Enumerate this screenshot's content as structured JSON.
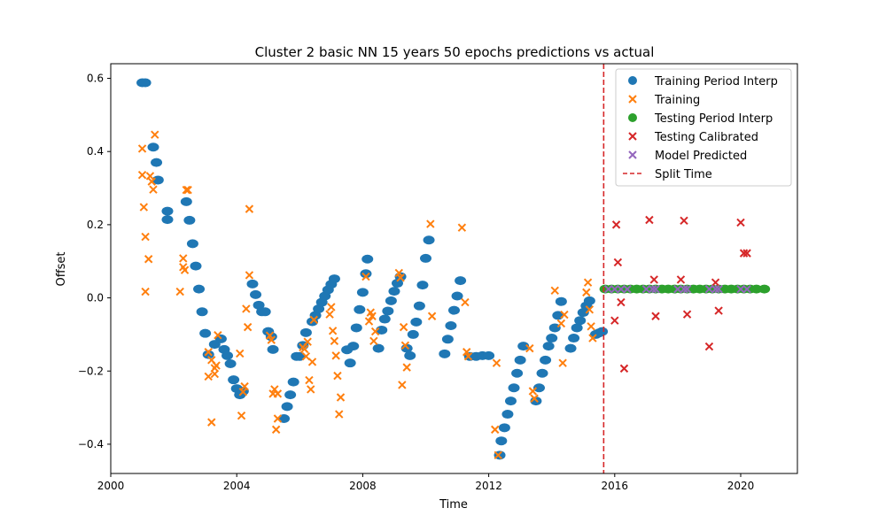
{
  "chart_data": {
    "type": "scatter",
    "title": "Cluster 2 basic NN 15 years 50 epochs predictions vs actual",
    "xlabel": "Time",
    "ylabel": "Offset",
    "xlim": [
      2000.0,
      2021.8
    ],
    "ylim": [
      -0.48,
      0.64
    ],
    "x_ticks": [
      2000,
      2004,
      2008,
      2012,
      2016,
      2020
    ],
    "y_ticks": [
      -0.4,
      -0.2,
      0.0,
      0.2,
      0.4,
      0.6
    ],
    "x_tick_labels": [
      "2000",
      "2004",
      "2008",
      "2012",
      "2016",
      "2020"
    ],
    "y_tick_labels": [
      "−0.4",
      "−0.2",
      "0.0",
      "0.2",
      "0.4",
      "0.6"
    ],
    "grid": false,
    "legend_position": "top-right",
    "split_time": 2015.65,
    "series": [
      {
        "name": "Training Period Interp",
        "marker": "circle",
        "color": "#1f77b4",
        "points": [
          [
            2001.0,
            0.588
          ],
          [
            2001.1,
            0.588
          ],
          [
            2001.35,
            0.412
          ],
          [
            2001.45,
            0.37
          ],
          [
            2001.5,
            0.322
          ],
          [
            2001.8,
            0.237
          ],
          [
            2001.8,
            0.214
          ],
          [
            2002.4,
            0.263
          ],
          [
            2002.5,
            0.212
          ],
          [
            2002.6,
            0.148
          ],
          [
            2002.7,
            0.087
          ],
          [
            2002.8,
            0.024
          ],
          [
            2002.9,
            -0.038
          ],
          [
            2003.0,
            -0.097
          ],
          [
            2003.1,
            -0.155
          ],
          [
            2003.3,
            -0.127
          ],
          [
            2003.5,
            -0.112
          ],
          [
            2003.6,
            -0.141
          ],
          [
            2003.7,
            -0.158
          ],
          [
            2003.8,
            -0.18
          ],
          [
            2003.9,
            -0.224
          ],
          [
            2004.0,
            -0.248
          ],
          [
            2004.1,
            -0.265
          ],
          [
            2004.2,
            -0.255
          ],
          [
            2004.5,
            0.038
          ],
          [
            2004.6,
            0.009
          ],
          [
            2004.7,
            -0.02
          ],
          [
            2004.8,
            -0.038
          ],
          [
            2004.9,
            -0.038
          ],
          [
            2005.0,
            -0.092
          ],
          [
            2005.1,
            -0.106
          ],
          [
            2005.15,
            -0.141
          ],
          [
            2005.5,
            -0.33
          ],
          [
            2005.6,
            -0.297
          ],
          [
            2005.7,
            -0.265
          ],
          [
            2005.8,
            -0.23
          ],
          [
            2005.9,
            -0.16
          ],
          [
            2006.0,
            -0.16
          ],
          [
            2006.1,
            -0.13
          ],
          [
            2006.2,
            -0.095
          ],
          [
            2006.4,
            -0.065
          ],
          [
            2006.5,
            -0.048
          ],
          [
            2006.6,
            -0.03
          ],
          [
            2006.7,
            -0.012
          ],
          [
            2006.8,
            0.005
          ],
          [
            2006.9,
            0.022
          ],
          [
            2007.0,
            0.037
          ],
          [
            2007.1,
            0.052
          ],
          [
            2007.5,
            -0.142
          ],
          [
            2007.6,
            -0.178
          ],
          [
            2007.7,
            -0.132
          ],
          [
            2007.8,
            -0.082
          ],
          [
            2007.9,
            -0.032
          ],
          [
            2008.0,
            0.015
          ],
          [
            2008.1,
            0.066
          ],
          [
            2008.15,
            0.106
          ],
          [
            2008.5,
            -0.138
          ],
          [
            2008.6,
            -0.088
          ],
          [
            2008.7,
            -0.058
          ],
          [
            2008.8,
            -0.036
          ],
          [
            2008.9,
            -0.008
          ],
          [
            2009.0,
            0.018
          ],
          [
            2009.1,
            0.04
          ],
          [
            2009.2,
            0.058
          ],
          [
            2009.4,
            -0.138
          ],
          [
            2009.5,
            -0.158
          ],
          [
            2009.6,
            -0.1
          ],
          [
            2009.7,
            -0.066
          ],
          [
            2009.8,
            -0.022
          ],
          [
            2009.9,
            0.035
          ],
          [
            2010.0,
            0.108
          ],
          [
            2010.1,
            0.158
          ],
          [
            2010.6,
            -0.153
          ],
          [
            2010.7,
            -0.113
          ],
          [
            2010.8,
            -0.076
          ],
          [
            2010.9,
            -0.034
          ],
          [
            2011.0,
            0.005
          ],
          [
            2011.1,
            0.047
          ],
          [
            2011.4,
            -0.16
          ],
          [
            2011.6,
            -0.16
          ],
          [
            2011.8,
            -0.158
          ],
          [
            2012.0,
            -0.158
          ],
          [
            2012.35,
            -0.43
          ],
          [
            2012.4,
            -0.391
          ],
          [
            2012.5,
            -0.355
          ],
          [
            2012.6,
            -0.318
          ],
          [
            2012.7,
            -0.282
          ],
          [
            2012.8,
            -0.246
          ],
          [
            2012.9,
            -0.206
          ],
          [
            2013.0,
            -0.17
          ],
          [
            2013.1,
            -0.132
          ],
          [
            2013.5,
            -0.282
          ],
          [
            2013.6,
            -0.246
          ],
          [
            2013.7,
            -0.206
          ],
          [
            2013.8,
            -0.17
          ],
          [
            2013.9,
            -0.132
          ],
          [
            2014.0,
            -0.11
          ],
          [
            2014.1,
            -0.082
          ],
          [
            2014.2,
            -0.048
          ],
          [
            2014.3,
            -0.01
          ],
          [
            2014.6,
            -0.138
          ],
          [
            2014.7,
            -0.11
          ],
          [
            2014.8,
            -0.082
          ],
          [
            2014.9,
            -0.062
          ],
          [
            2015.0,
            -0.04
          ],
          [
            2015.1,
            -0.022
          ],
          [
            2015.2,
            -0.008
          ],
          [
            2015.4,
            -0.1
          ],
          [
            2015.5,
            -0.096
          ],
          [
            2015.6,
            -0.092
          ]
        ]
      },
      {
        "name": "Training",
        "marker": "x",
        "color": "#ff7f0e",
        "points": [
          [
            2001.0,
            0.408
          ],
          [
            2001.0,
            0.336
          ],
          [
            2001.05,
            0.248
          ],
          [
            2001.1,
            0.167
          ],
          [
            2001.1,
            0.017
          ],
          [
            2001.2,
            0.106
          ],
          [
            2001.25,
            0.333
          ],
          [
            2001.3,
            0.318
          ],
          [
            2001.35,
            0.296
          ],
          [
            2001.4,
            0.446
          ],
          [
            2002.2,
            0.017
          ],
          [
            2002.3,
            0.108
          ],
          [
            2002.3,
            0.084
          ],
          [
            2002.35,
            0.076
          ],
          [
            2002.4,
            0.295
          ],
          [
            2002.45,
            0.295
          ],
          [
            2003.1,
            -0.148
          ],
          [
            2003.1,
            -0.215
          ],
          [
            2003.2,
            -0.17
          ],
          [
            2003.2,
            -0.34
          ],
          [
            2003.3,
            -0.192
          ],
          [
            2003.3,
            -0.208
          ],
          [
            2003.35,
            -0.185
          ],
          [
            2003.4,
            -0.102
          ],
          [
            2004.1,
            -0.152
          ],
          [
            2004.15,
            -0.322
          ],
          [
            2004.2,
            -0.257
          ],
          [
            2004.25,
            -0.242
          ],
          [
            2004.3,
            -0.03
          ],
          [
            2004.35,
            -0.08
          ],
          [
            2004.4,
            0.062
          ],
          [
            2004.4,
            0.243
          ],
          [
            2005.05,
            -0.103
          ],
          [
            2005.1,
            -0.115
          ],
          [
            2005.15,
            -0.262
          ],
          [
            2005.2,
            -0.25
          ],
          [
            2005.25,
            -0.36
          ],
          [
            2005.3,
            -0.33
          ],
          [
            2005.3,
            -0.262
          ],
          [
            2006.1,
            -0.135
          ],
          [
            2006.15,
            -0.14
          ],
          [
            2006.2,
            -0.16
          ],
          [
            2006.25,
            -0.12
          ],
          [
            2006.3,
            -0.225
          ],
          [
            2006.35,
            -0.25
          ],
          [
            2006.4,
            -0.175
          ],
          [
            2006.45,
            -0.06
          ],
          [
            2006.95,
            -0.045
          ],
          [
            2007.0,
            -0.025
          ],
          [
            2007.05,
            -0.09
          ],
          [
            2007.1,
            -0.118
          ],
          [
            2007.15,
            -0.158
          ],
          [
            2007.2,
            -0.213
          ],
          [
            2007.25,
            -0.318
          ],
          [
            2007.3,
            -0.272
          ],
          [
            2008.1,
            0.058
          ],
          [
            2008.2,
            -0.064
          ],
          [
            2008.25,
            -0.04
          ],
          [
            2008.3,
            -0.05
          ],
          [
            2008.35,
            -0.118
          ],
          [
            2008.4,
            -0.092
          ],
          [
            2009.15,
            0.068
          ],
          [
            2009.2,
            0.055
          ],
          [
            2009.25,
            -0.238
          ],
          [
            2009.3,
            -0.08
          ],
          [
            2009.35,
            -0.13
          ],
          [
            2009.4,
            -0.19
          ],
          [
            2010.15,
            0.202
          ],
          [
            2010.2,
            -0.05
          ],
          [
            2011.15,
            0.192
          ],
          [
            2011.25,
            -0.012
          ],
          [
            2011.3,
            -0.148
          ],
          [
            2011.35,
            -0.16
          ],
          [
            2012.2,
            -0.36
          ],
          [
            2012.25,
            -0.178
          ],
          [
            2012.3,
            -0.43
          ],
          [
            2013.3,
            -0.138
          ],
          [
            2013.4,
            -0.255
          ],
          [
            2013.45,
            -0.275
          ],
          [
            2014.1,
            0.02
          ],
          [
            2014.3,
            -0.07
          ],
          [
            2014.35,
            -0.178
          ],
          [
            2014.4,
            -0.046
          ],
          [
            2015.1,
            0.015
          ],
          [
            2015.15,
            0.042
          ],
          [
            2015.2,
            -0.032
          ],
          [
            2015.25,
            -0.078
          ],
          [
            2015.3,
            -0.11
          ]
        ]
      },
      {
        "name": "Testing Period Interp",
        "marker": "circle",
        "color": "#2ca02c",
        "points": [
          [
            2015.7,
            0.024
          ],
          [
            2015.9,
            0.024
          ],
          [
            2016.1,
            0.024
          ],
          [
            2016.3,
            0.024
          ],
          [
            2016.5,
            0.024
          ],
          [
            2016.7,
            0.024
          ],
          [
            2016.9,
            0.024
          ],
          [
            2017.1,
            0.024
          ],
          [
            2017.3,
            0.024
          ],
          [
            2017.5,
            0.024
          ],
          [
            2017.7,
            0.024
          ],
          [
            2017.9,
            0.024
          ],
          [
            2018.1,
            0.024
          ],
          [
            2018.3,
            0.024
          ],
          [
            2018.5,
            0.024
          ],
          [
            2018.7,
            0.024
          ],
          [
            2018.9,
            0.024
          ],
          [
            2019.1,
            0.024
          ],
          [
            2019.3,
            0.024
          ],
          [
            2019.5,
            0.024
          ],
          [
            2019.7,
            0.024
          ],
          [
            2019.9,
            0.024
          ],
          [
            2020.1,
            0.024
          ],
          [
            2020.3,
            0.024
          ],
          [
            2020.5,
            0.024
          ],
          [
            2020.75,
            0.024
          ]
        ]
      },
      {
        "name": "Testing Calibrated",
        "marker": "x",
        "color": "#d62728",
        "points": [
          [
            2016.0,
            -0.062
          ],
          [
            2016.05,
            0.2
          ],
          [
            2016.1,
            0.097
          ],
          [
            2016.2,
            -0.012
          ],
          [
            2016.3,
            -0.193
          ],
          [
            2017.1,
            0.213
          ],
          [
            2017.25,
            0.05
          ],
          [
            2017.3,
            -0.05
          ],
          [
            2018.1,
            0.05
          ],
          [
            2018.2,
            0.211
          ],
          [
            2018.3,
            -0.045
          ],
          [
            2019.0,
            -0.133
          ],
          [
            2019.2,
            0.042
          ],
          [
            2019.3,
            -0.035
          ],
          [
            2020.0,
            0.206
          ],
          [
            2020.1,
            0.122
          ],
          [
            2020.2,
            0.122
          ]
        ]
      },
      {
        "name": "Model Predicted",
        "marker": "x",
        "color": "#9467bd",
        "points": [
          [
            2015.8,
            0.024
          ],
          [
            2016.0,
            0.024
          ],
          [
            2016.2,
            0.024
          ],
          [
            2016.4,
            0.024
          ],
          [
            2017.0,
            0.024
          ],
          [
            2017.2,
            0.024
          ],
          [
            2017.3,
            0.024
          ],
          [
            2018.0,
            0.024
          ],
          [
            2018.2,
            0.024
          ],
          [
            2018.3,
            0.024
          ],
          [
            2019.0,
            0.024
          ],
          [
            2019.2,
            0.024
          ],
          [
            2019.3,
            0.024
          ],
          [
            2020.0,
            0.024
          ],
          [
            2020.2,
            0.024
          ]
        ]
      }
    ],
    "split_line": {
      "name": "Split Time",
      "color": "#d62728",
      "style": "dashed"
    }
  }
}
